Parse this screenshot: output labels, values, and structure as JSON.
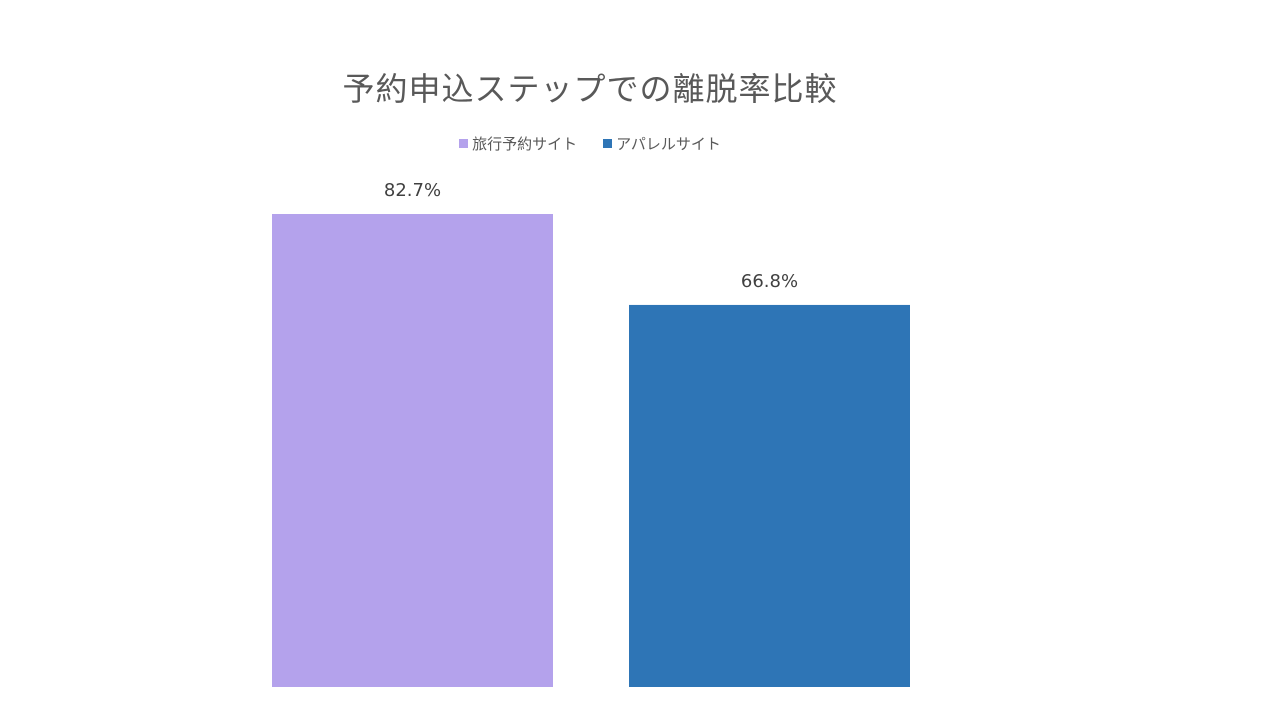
{
  "chart_data": {
    "type": "bar",
    "title": "予約申込ステップでの離脱率比較",
    "xlabel": "",
    "ylabel": "",
    "ylim": [
      0,
      90
    ],
    "grid": false,
    "legend_position": "top",
    "series": [
      {
        "name": "旅行予約サイト",
        "values": [
          82.7
        ],
        "label": "82.7%",
        "color": "#b4a2ec"
      },
      {
        "name": "アパレルサイト",
        "values": [
          66.8
        ],
        "label": "66.8%",
        "color": "#2e75b6"
      }
    ]
  }
}
